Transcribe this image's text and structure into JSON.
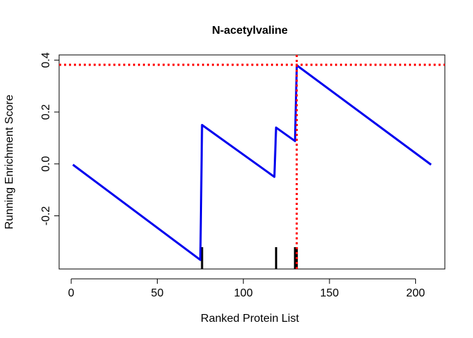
{
  "chart_data": {
    "type": "line",
    "title": "N-acetylvaline",
    "xlabel": "Ranked Protein List",
    "ylabel": "Running Enrichment Score",
    "xlim": [
      -7,
      217
    ],
    "ylim": [
      -0.405,
      0.42
    ],
    "x_ticks": [
      0,
      50,
      100,
      150,
      200
    ],
    "x_tick_labels": [
      "0",
      "50",
      "100",
      "150",
      "200"
    ],
    "y_ticks": [
      -0.2,
      0.0,
      0.2,
      0.4
    ],
    "y_tick_labels": [
      "-0.2",
      "0.0",
      "0.2",
      "0.4"
    ],
    "grid": false,
    "series": [
      {
        "color": "#0000ee",
        "x": [
          1,
          75,
          76,
          118,
          119,
          130,
          131,
          209
        ],
        "y": [
          -0.003,
          -0.37,
          0.15,
          -0.05,
          0.14,
          0.088,
          0.38,
          -0.003
        ]
      }
    ],
    "hit_positions": [
      76,
      119,
      130,
      131
    ],
    "max_es": {
      "x": 131,
      "y": 0.382,
      "color": "#ff0000"
    }
  }
}
